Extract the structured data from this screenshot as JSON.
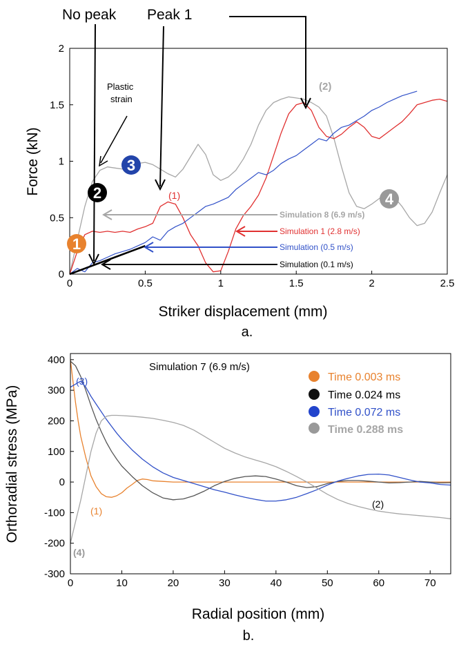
{
  "chart_data": [
    {
      "type": "line",
      "panel_label": "a.",
      "xlabel": "Striker displacement (mm)",
      "ylabel": "Force (kN)",
      "xlim": [
        0,
        2.5
      ],
      "ylim": [
        0,
        2
      ],
      "x_ticks": [
        0,
        0.5,
        1,
        1.5,
        2,
        2.5
      ],
      "x_tick_labels": [
        "0",
        "0.5",
        "1",
        "1.5",
        "2",
        "2.5"
      ],
      "y_ticks": [
        0,
        0.5,
        1,
        1.5,
        2
      ],
      "y_tick_labels": [
        "0",
        "0.5",
        "1",
        "1.5",
        "2"
      ],
      "grid": false,
      "series": [
        {
          "name": "Simulation 8 (6.9 m/s)",
          "color": "#a6a6a6",
          "x": [
            0,
            0.05,
            0.1,
            0.15,
            0.2,
            0.25,
            0.3,
            0.35,
            0.4,
            0.45,
            0.5,
            0.55,
            0.6,
            0.65,
            0.7,
            0.75,
            0.8,
            0.85,
            0.9,
            0.95,
            1.0,
            1.05,
            1.1,
            1.15,
            1.2,
            1.25,
            1.3,
            1.35,
            1.4,
            1.45,
            1.5,
            1.55,
            1.6,
            1.65,
            1.7,
            1.75,
            1.8,
            1.85,
            1.9,
            1.95,
            2.0,
            2.05,
            2.1,
            2.15,
            2.2,
            2.25,
            2.3,
            2.35,
            2.4,
            2.45,
            2.5
          ],
          "y": [
            0.0,
            0.3,
            0.6,
            0.82,
            0.92,
            0.95,
            0.94,
            0.93,
            0.95,
            0.98,
            0.99,
            0.97,
            0.93,
            0.89,
            0.86,
            0.93,
            1.04,
            1.15,
            1.06,
            0.88,
            0.83,
            0.86,
            0.92,
            1.02,
            1.15,
            1.32,
            1.45,
            1.52,
            1.55,
            1.57,
            1.56,
            1.55,
            1.52,
            1.48,
            1.4,
            1.2,
            0.95,
            0.72,
            0.6,
            0.58,
            0.62,
            0.67,
            0.7,
            0.68,
            0.6,
            0.5,
            0.43,
            0.45,
            0.55,
            0.72,
            0.88
          ]
        },
        {
          "name": "Simulation 1 (2.8 m/s)",
          "color": "#e03030",
          "x": [
            0,
            0.05,
            0.1,
            0.15,
            0.2,
            0.25,
            0.3,
            0.35,
            0.4,
            0.45,
            0.5,
            0.55,
            0.6,
            0.65,
            0.7,
            0.75,
            0.8,
            0.85,
            0.9,
            0.95,
            1.0,
            1.05,
            1.1,
            1.15,
            1.2,
            1.25,
            1.3,
            1.35,
            1.4,
            1.45,
            1.5,
            1.55,
            1.6,
            1.65,
            1.7,
            1.75,
            1.8,
            1.85,
            1.9,
            1.95,
            2.0,
            2.05,
            2.1,
            2.15,
            2.2,
            2.25,
            2.3,
            2.35,
            2.4,
            2.45,
            2.5
          ],
          "y": [
            0.0,
            0.2,
            0.35,
            0.38,
            0.37,
            0.38,
            0.37,
            0.38,
            0.37,
            0.4,
            0.42,
            0.45,
            0.6,
            0.64,
            0.62,
            0.5,
            0.35,
            0.25,
            0.1,
            0.02,
            0.03,
            0.2,
            0.4,
            0.52,
            0.6,
            0.7,
            0.85,
            1.05,
            1.25,
            1.42,
            1.5,
            1.52,
            1.45,
            1.3,
            1.22,
            1.2,
            1.24,
            1.3,
            1.35,
            1.3,
            1.22,
            1.2,
            1.25,
            1.3,
            1.35,
            1.42,
            1.5,
            1.52,
            1.54,
            1.55,
            1.53
          ]
        },
        {
          "name": "Simulation (0.5 m/s)",
          "color": "#3050c8",
          "x": [
            0,
            0.05,
            0.1,
            0.15,
            0.2,
            0.25,
            0.3,
            0.35,
            0.4,
            0.45,
            0.5,
            0.55,
            0.6,
            0.65,
            0.7,
            0.75,
            0.8,
            0.85,
            0.9,
            0.95,
            1.0,
            1.05,
            1.1,
            1.15,
            1.2,
            1.25,
            1.3,
            1.35,
            1.4,
            1.45,
            1.5,
            1.55,
            1.6,
            1.65,
            1.7,
            1.75,
            1.8,
            1.85,
            1.9,
            1.95,
            2.0,
            2.05,
            2.1,
            2.15,
            2.2,
            2.25,
            2.3
          ],
          "y": [
            0.0,
            0.05,
            0.02,
            0.1,
            0.12,
            0.15,
            0.18,
            0.2,
            0.22,
            0.25,
            0.28,
            0.33,
            0.3,
            0.38,
            0.42,
            0.45,
            0.5,
            0.55,
            0.6,
            0.62,
            0.65,
            0.68,
            0.75,
            0.8,
            0.85,
            0.9,
            0.88,
            0.92,
            0.98,
            1.02,
            1.05,
            1.1,
            1.15,
            1.2,
            1.18,
            1.25,
            1.3,
            1.32,
            1.36,
            1.4,
            1.45,
            1.48,
            1.52,
            1.55,
            1.58,
            1.6,
            1.62
          ]
        },
        {
          "name": "Simulation (0.1 m/s)",
          "color": "#000000",
          "x": [
            0,
            0.1,
            0.2,
            0.3,
            0.4,
            0.5
          ],
          "y": [
            0.0,
            0.05,
            0.1,
            0.15,
            0.2,
            0.25
          ]
        }
      ],
      "annotations": [
        {
          "text": "No peak"
        },
        {
          "text": "Peak 1"
        },
        {
          "text": "Plastic"
        },
        {
          "text": "strain"
        },
        {
          "text": "(1)"
        },
        {
          "text": "(2)"
        },
        {
          "text": "1"
        },
        {
          "text": "2"
        },
        {
          "text": "3"
        },
        {
          "text": "4"
        }
      ]
    },
    {
      "type": "line",
      "panel_label": "b.",
      "title": "Simulation 7 (6.9 m/s)",
      "xlabel": "Radial position (mm)",
      "ylabel": "Orthoradial stress (MPa)",
      "xlim": [
        0,
        74
      ],
      "ylim": [
        -300,
        420
      ],
      "x_ticks": [
        0,
        10,
        20,
        30,
        40,
        50,
        60,
        70
      ],
      "x_tick_labels": [
        "0",
        "10",
        "20",
        "30",
        "40",
        "50",
        "60",
        "70"
      ],
      "y_ticks": [
        -300,
        -200,
        -100,
        0,
        100,
        200,
        300,
        400
      ],
      "y_tick_labels": [
        "-300",
        "-200",
        "-100",
        "0",
        "100",
        "200",
        "300",
        "400"
      ],
      "grid": false,
      "legend": "top-right",
      "series": [
        {
          "name": "Time 0.003 ms",
          "color": "#e8822e",
          "x": [
            0,
            0.5,
            1,
            1.5,
            2,
            3,
            4,
            5,
            6,
            7,
            8,
            9,
            10,
            11,
            12,
            13,
            14,
            15,
            16,
            18,
            20,
            25,
            30,
            40,
            50,
            60,
            70,
            74
          ],
          "y": [
            400,
            330,
            260,
            200,
            150,
            80,
            20,
            -15,
            -38,
            -48,
            -50,
            -45,
            -35,
            -20,
            -8,
            5,
            10,
            8,
            4,
            2,
            0,
            0,
            0,
            0,
            0,
            0,
            0,
            0
          ]
        },
        {
          "name": "Time 0.024 ms",
          "color": "#555555",
          "x": [
            0,
            1,
            2,
            3,
            4,
            5,
            6,
            7,
            8,
            9,
            10,
            12,
            14,
            16,
            18,
            20,
            22,
            24,
            26,
            28,
            30,
            32,
            34,
            36,
            38,
            40,
            42,
            44,
            46,
            48,
            50,
            52,
            54,
            56,
            58,
            60,
            62,
            64,
            66,
            68,
            70,
            72,
            74
          ],
          "y": [
            395,
            380,
            345,
            300,
            250,
            205,
            165,
            130,
            100,
            75,
            52,
            18,
            -12,
            -35,
            -52,
            -58,
            -55,
            -45,
            -30,
            -12,
            2,
            12,
            18,
            20,
            18,
            10,
            0,
            -12,
            -18,
            -15,
            -5,
            2,
            5,
            5,
            3,
            0,
            -3,
            -2,
            0,
            2,
            0,
            -3,
            -2
          ]
        },
        {
          "name": "Time 0.072 ms",
          "color": "#3050c8",
          "x": [
            0,
            1,
            2,
            3,
            4,
            5,
            6,
            7,
            8,
            9,
            10,
            12,
            14,
            16,
            18,
            20,
            22,
            24,
            26,
            28,
            30,
            32,
            34,
            36,
            38,
            40,
            42,
            44,
            46,
            48,
            50,
            52,
            54,
            56,
            58,
            60,
            62,
            64,
            66,
            68,
            70,
            72,
            74
          ],
          "y": [
            310,
            320,
            330,
            310,
            280,
            255,
            230,
            205,
            182,
            160,
            140,
            105,
            75,
            50,
            30,
            15,
            5,
            -5,
            -15,
            -25,
            -33,
            -42,
            -50,
            -57,
            -62,
            -62,
            -58,
            -50,
            -38,
            -25,
            -10,
            3,
            12,
            20,
            25,
            26,
            23,
            15,
            7,
            0,
            -3,
            -8,
            -10
          ]
        },
        {
          "name": "Time 0.288 ms",
          "color": "#a6a6a6",
          "x": [
            0,
            0.5,
            1,
            2,
            3,
            4,
            5,
            6,
            7,
            8,
            9,
            10,
            12,
            14,
            16,
            18,
            20,
            22,
            24,
            26,
            28,
            30,
            32,
            34,
            36,
            38,
            40,
            42,
            44,
            46,
            48,
            50,
            52,
            54,
            56,
            58,
            60,
            62,
            64,
            66,
            68,
            70,
            72,
            74
          ],
          "y": [
            -200,
            -165,
            -130,
            -60,
            20,
            100,
            160,
            200,
            215,
            218,
            218,
            217,
            215,
            212,
            208,
            202,
            195,
            185,
            170,
            150,
            130,
            110,
            95,
            82,
            72,
            62,
            50,
            35,
            18,
            0,
            -20,
            -40,
            -57,
            -70,
            -80,
            -88,
            -95,
            -100,
            -104,
            -107,
            -110,
            -113,
            -116,
            -120
          ]
        }
      ],
      "annotations": [
        {
          "text": "(1)"
        },
        {
          "text": "(2)"
        },
        {
          "text": "(3)"
        },
        {
          "text": "(4)"
        }
      ]
    }
  ]
}
